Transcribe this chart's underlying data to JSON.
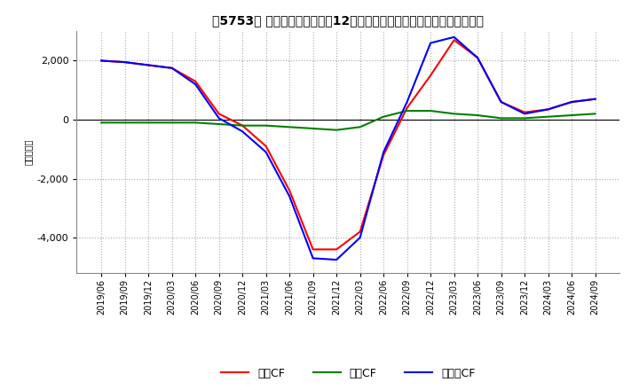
{
  "title": "[、5753、] キャッシュフローの12か月移動合計の対前年同期増減額の推移",
  "title_ja": "【5753】 キャッシュフローの12か月移動合計の対前年同期増減額の推移",
  "ylabel": "（百万円）",
  "ylim": [
    -5200,
    3000
  ],
  "yticks": [
    -4000,
    -2000,
    0,
    2000
  ],
  "legend_labels": [
    "営業CF",
    "投資CF",
    "フリーCF"
  ],
  "line_colors": [
    "#ff0000",
    "#008000",
    "#0000ff"
  ],
  "dates": [
    "2019/06",
    "2019/09",
    "2019/12",
    "2020/03",
    "2020/06",
    "2020/09",
    "2020/12",
    "2021/03",
    "2021/06",
    "2021/09",
    "2021/12",
    "2022/03",
    "2022/06",
    "2022/09",
    "2022/12",
    "2023/03",
    "2023/06",
    "2023/09",
    "2023/12",
    "2024/03",
    "2024/06",
    "2024/09"
  ],
  "eigyo_cf": [
    2000,
    1950,
    1850,
    1750,
    1300,
    200,
    -200,
    -900,
    -2400,
    -4400,
    -4400,
    -3800,
    -1200,
    400,
    1500,
    2700,
    2100,
    600,
    250,
    350,
    600,
    700
  ],
  "toshi_cf": [
    -100,
    -100,
    -100,
    -100,
    -100,
    -150,
    -200,
    -200,
    -250,
    -300,
    -350,
    -250,
    100,
    300,
    300,
    200,
    150,
    50,
    50,
    100,
    150,
    200
  ],
  "free_cf": [
    2000,
    1950,
    1850,
    1750,
    1200,
    50,
    -400,
    -1100,
    -2600,
    -4700,
    -4750,
    -4000,
    -1100,
    600,
    2600,
    2800,
    2100,
    600,
    200,
    350,
    600,
    700
  ]
}
